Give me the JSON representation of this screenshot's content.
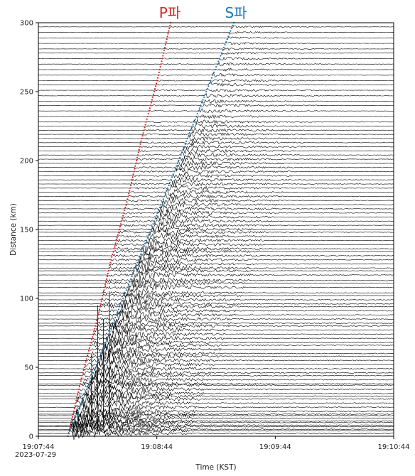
{
  "chart_data": {
    "type": "scatter",
    "subtitle_labels": {
      "p_wave": "P파",
      "s_wave": "S파"
    },
    "p_wave_color": "#d62728",
    "s_wave_color": "#1f77b4",
    "trace_color": "#000000",
    "xlabel": "Time (KST)",
    "ylabel": "Distance (km)",
    "date_label": "2023-07-29",
    "x_ticks": [
      "19:07:44",
      "19:08:44",
      "19:09:44",
      "19:10:44"
    ],
    "x_tick_seconds": [
      0,
      60,
      120,
      180
    ],
    "xlim_seconds": [
      0,
      180
    ],
    "y_ticks": [
      0,
      50,
      100,
      150,
      200,
      250,
      300
    ],
    "ylim": [
      0,
      300
    ],
    "grid": false,
    "legend": "none",
    "p_wave_arrival": {
      "x_seconds": [
        15,
        22,
        30,
        37,
        45,
        52,
        60,
        67
      ],
      "y_km": [
        0,
        43,
        86,
        129,
        171,
        214,
        257,
        300
      ]
    },
    "s_wave_arrival": {
      "x_seconds": [
        15,
        27,
        39,
        51,
        63,
        75,
        87,
        99
      ],
      "y_km": [
        0,
        43,
        86,
        129,
        171,
        214,
        257,
        300
      ]
    },
    "station_distances_km": [
      2,
      4,
      5,
      7,
      8,
      10,
      11,
      13,
      15,
      16,
      18,
      21,
      24,
      27,
      29,
      31,
      34,
      37,
      38,
      41,
      44,
      46,
      49,
      52,
      55,
      58,
      60,
      63,
      66,
      68,
      71,
      74,
      77,
      80,
      82,
      85,
      88,
      91,
      94,
      96,
      99,
      102,
      104,
      108,
      111,
      113,
      117,
      120,
      122,
      125,
      128,
      131,
      134,
      136,
      139,
      142,
      145,
      148,
      150,
      153,
      156,
      159,
      162,
      165,
      168,
      171,
      174,
      177,
      180,
      183,
      186,
      189,
      192,
      195,
      198,
      201,
      204,
      207,
      210,
      213,
      216,
      219,
      222,
      225,
      228,
      232,
      236,
      240,
      243,
      247,
      251,
      255,
      258,
      262,
      266,
      270,
      274,
      278,
      281,
      285,
      289,
      293,
      297
    ]
  }
}
